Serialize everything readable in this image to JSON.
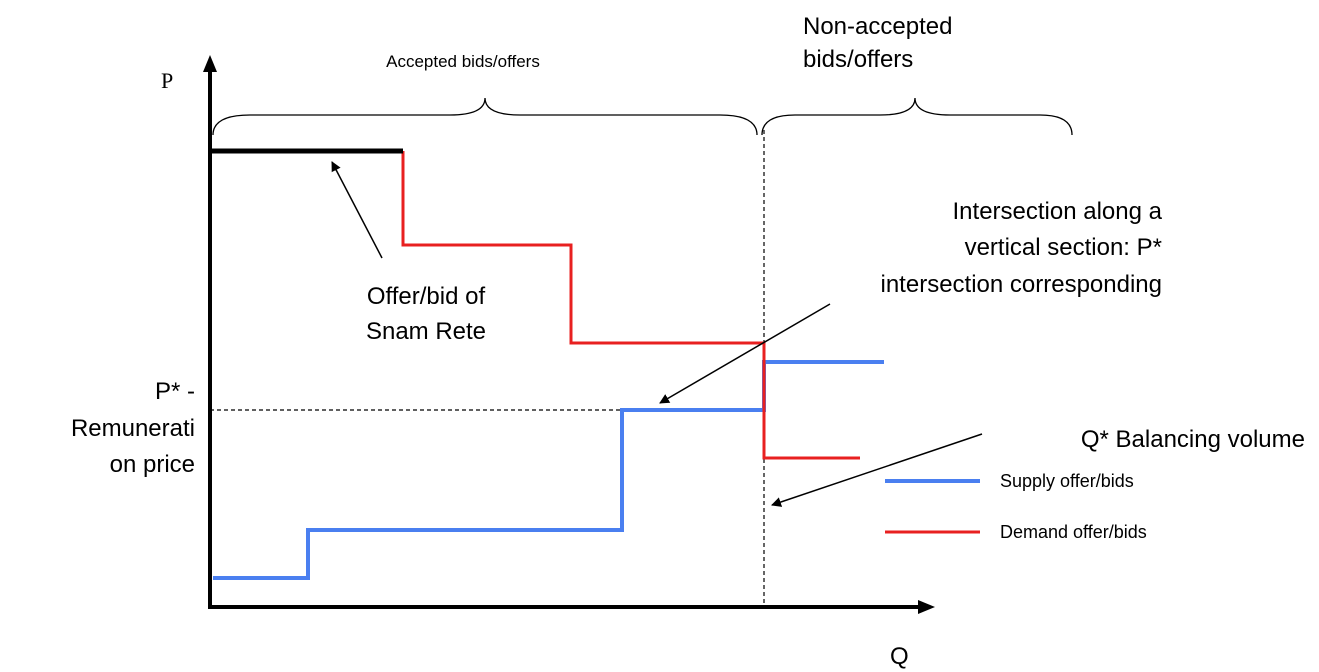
{
  "axes": {
    "y_label": "P",
    "x_label": "Q"
  },
  "braces": {
    "accepted": "Accepted bids/offers",
    "non_accepted": [
      "Non-accepted",
      "bids/offers"
    ]
  },
  "annotations": {
    "snam": [
      "Offer/bid of",
      "Snam Rete"
    ],
    "intersection": [
      "Intersection along a",
      "vertical section: P*",
      "intersection corresponding"
    ],
    "price": [
      "P* -",
      "Remunerati",
      "on price"
    ],
    "volume": "Q* Balancing volume"
  },
  "legend": {
    "supply": "Supply offer/bids",
    "demand": "Demand offer/bids"
  }
}
